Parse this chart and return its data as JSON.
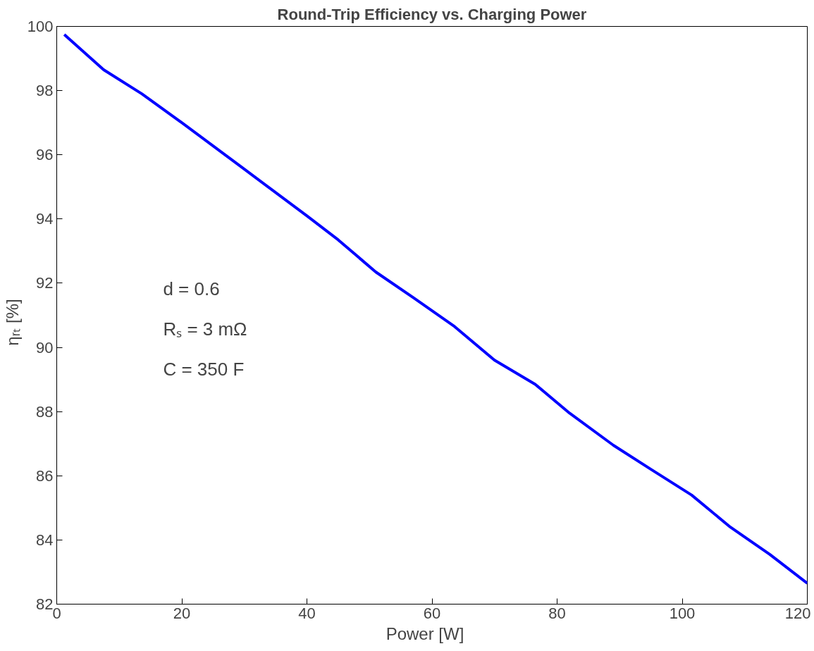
{
  "chart_data": {
    "type": "line",
    "title": "Round-Trip Efficiency vs. Charging Power",
    "xlabel": "Power    [W]",
    "ylabel": "ηᵣₜ    [%]",
    "annotations": [
      "d = 0.6",
      "Rₛ = 3 mΩ",
      "C = 350 F"
    ],
    "series": [
      {
        "color": "#0000ff",
        "x": [
          1.2,
          7.5,
          13.6,
          20,
          30,
          40,
          45,
          51,
          57,
          63.6,
          70,
          76.5,
          82,
          89,
          95,
          101.5,
          107.7,
          114,
          120
        ],
        "values": [
          99.75,
          98.65,
          97.9,
          97.0,
          95.55,
          94.1,
          93.35,
          92.35,
          91.55,
          90.65,
          89.6,
          88.85,
          87.95,
          86.95,
          86.2,
          85.4,
          84.4,
          83.55,
          82.65
        ]
      }
    ],
    "xlim": [
      0,
      120
    ],
    "ylim": [
      82,
      100
    ],
    "xticks": [
      0,
      20,
      40,
      60,
      80,
      100,
      120
    ],
    "yticks": [
      82,
      84,
      86,
      88,
      90,
      92,
      94,
      96,
      98,
      100
    ],
    "grid": false,
    "line_style": "solid",
    "marker": "none"
  }
}
